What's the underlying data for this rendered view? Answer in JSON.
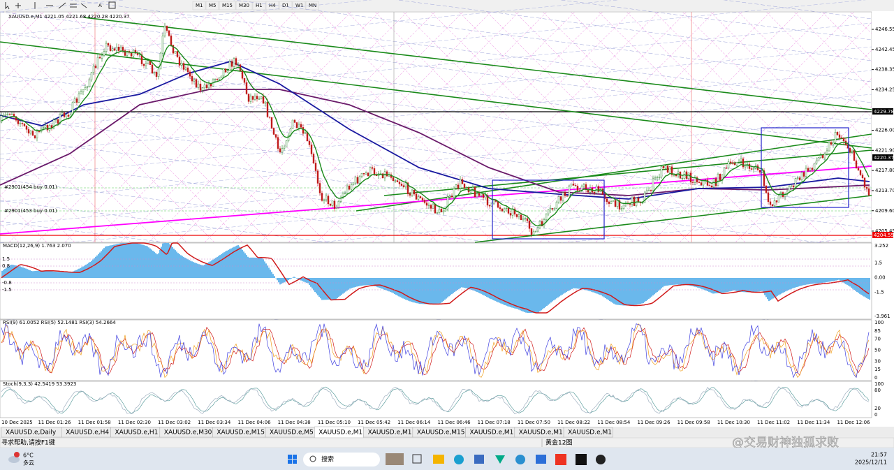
{
  "toolbar": {
    "timeframes": [
      "M1",
      "M5",
      "M15",
      "M30",
      "H1",
      "H4",
      "D1",
      "W1",
      "MN"
    ]
  },
  "chart": {
    "title": "XAUUSD.e,M1  4221.05 4221.68 4220.28 4220.37",
    "price_axis": [
      "4246.55",
      "4242.45",
      "4238.35",
      "4234.25",
      "4226.00",
      "4221.90",
      "4217.80",
      "4213.70",
      "4209.60",
      "4205.45"
    ],
    "line_price": "4229.78",
    "current_price": "4220.37",
    "low_price": "4204.55",
    "order_labels": [
      "#2901(454 buy 0.01)",
      "#2901(453 buy 0.01)"
    ],
    "time_axis": [
      "10 Dec 2025",
      "11 Dec 01:26",
      "11 Dec 01:58",
      "11 Dec 02:30",
      "11 Dec 03:02",
      "11 Dec 03:34",
      "11 Dec 04:06",
      "11 Dec 04:38",
      "11 Dec 05:10",
      "11 Dec 05:42",
      "11 Dec 06:14",
      "11 Dec 06:46",
      "11 Dec 07:18",
      "11 Dec 07:50",
      "11 Dec 08:22",
      "11 Dec 08:54",
      "11 Dec 09:26",
      "11 Dec 09:58",
      "11 Dec 10:30",
      "11 Dec 11:02",
      "11 Dec 11:34",
      "11 Dec 12:06"
    ]
  },
  "macd": {
    "label": "MACD(12,26,9) 1.763 2.070",
    "axis": [
      "3.252",
      "1.5",
      "0.00",
      "-1.5",
      "-3.961"
    ],
    "left_levels": [
      "1.5",
      "0.8",
      "-0.8",
      "-1.5"
    ]
  },
  "rsi": {
    "label": "RSI(9) 61.0052  RSI(5) 52.1481  RSI(3) 54.2664",
    "axis": [
      "100",
      "85",
      "70",
      "50",
      "30",
      "15",
      "0"
    ]
  },
  "stoch": {
    "label": "Stoch(9,3,3) 42.5419 53.3923",
    "axis": [
      "100",
      "80",
      "20",
      "0"
    ]
  },
  "tabs": [
    "XAUUSD.e,Daily",
    "XAUUSD.e,H4",
    "XAUUSD.e,H1",
    "XAUUSD.e,M30",
    "XAUUSD.e,M15",
    "XAUUSD.e,M5",
    "XAUUSD.e,M1",
    "XAUUSD.e,M1",
    "XAUUSD.e,M15",
    "XAUUSD.e,M1",
    "XAUUSD.e,M1",
    "XAUUSD.e,M1"
  ],
  "status": {
    "help": "寻求帮助,请按F1键",
    "profile": "黄金12图",
    "watermark": "@交易财神独孤求败"
  },
  "taskbar": {
    "temperature": "6°C",
    "weather": "多云",
    "search": "搜索",
    "time": "21:57",
    "date": "2025/12/11"
  }
}
